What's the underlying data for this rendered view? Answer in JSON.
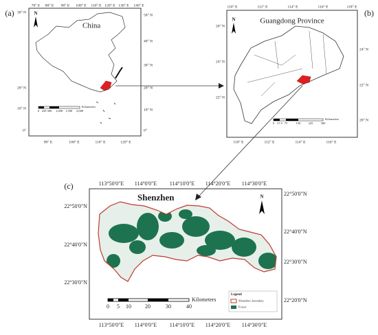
{
  "panels": [
    {
      "label": "(a)",
      "title": "China",
      "north": "N",
      "top_ticks": [
        "70° E",
        "80° E",
        "90° E",
        "100° E",
        "110° E",
        "120° E",
        "130° E",
        "140° E"
      ],
      "bottom_ticks": [
        "90° E",
        "100° E",
        "110° E",
        "120° E"
      ],
      "left_ticks": [
        "30° N",
        "20° N",
        "10° N",
        "0°"
      ],
      "right_ticks": [
        "50° N",
        "40° N",
        "30° N",
        "20° N",
        "10° N",
        "0°"
      ],
      "scale_ticks": [
        "0",
        "250",
        "500",
        "1,000",
        "1,500",
        "2,000"
      ],
      "scale_unit": "Kilometers"
    },
    {
      "label": "(b)",
      "title": "Guangdong Province",
      "north": "N",
      "top_ticks": [
        "110° E",
        "112° E",
        "114° E",
        "116° E",
        "118° E"
      ],
      "bottom_ticks": [
        "110° E",
        "112° E",
        "114° E",
        "116° E"
      ],
      "left_ticks": [
        "26° N",
        "24° N",
        "22° N"
      ],
      "right_ticks": [
        "24° N",
        "22° N",
        "20° N"
      ],
      "scale_ticks": [
        "0",
        "37.5",
        "75",
        "150",
        "225",
        "300"
      ],
      "scale_unit": "Kilometers"
    },
    {
      "label": "(c)",
      "title": "Shenzhen",
      "north": "N",
      "top_ticks": [
        "113°50'0\"E",
        "114°0'0\"E",
        "114°10'0\"E",
        "114°20'0\"E",
        "114°30'0\"E"
      ],
      "bottom_ticks": [
        "113°50'0\"E",
        "114°0'0\"E",
        "114°10'0\"E",
        "114°20'0\"E",
        "114°30'0\"E"
      ],
      "left_ticks": [
        "22°50'0\"N",
        "22°40'0\"N",
        "22°30'0\"N"
      ],
      "right_ticks": [
        "22°50'0\"N",
        "22°40'0\"N",
        "22°30'0\"N",
        "22°20'0\"N"
      ],
      "scale_ticks": [
        "0",
        "5",
        "10",
        "20",
        "30",
        "40"
      ],
      "scale_unit": "Kilometers"
    }
  ],
  "legend": {
    "title": "Legend",
    "items": [
      "Shenzhen_boundary",
      "Forest"
    ]
  }
}
